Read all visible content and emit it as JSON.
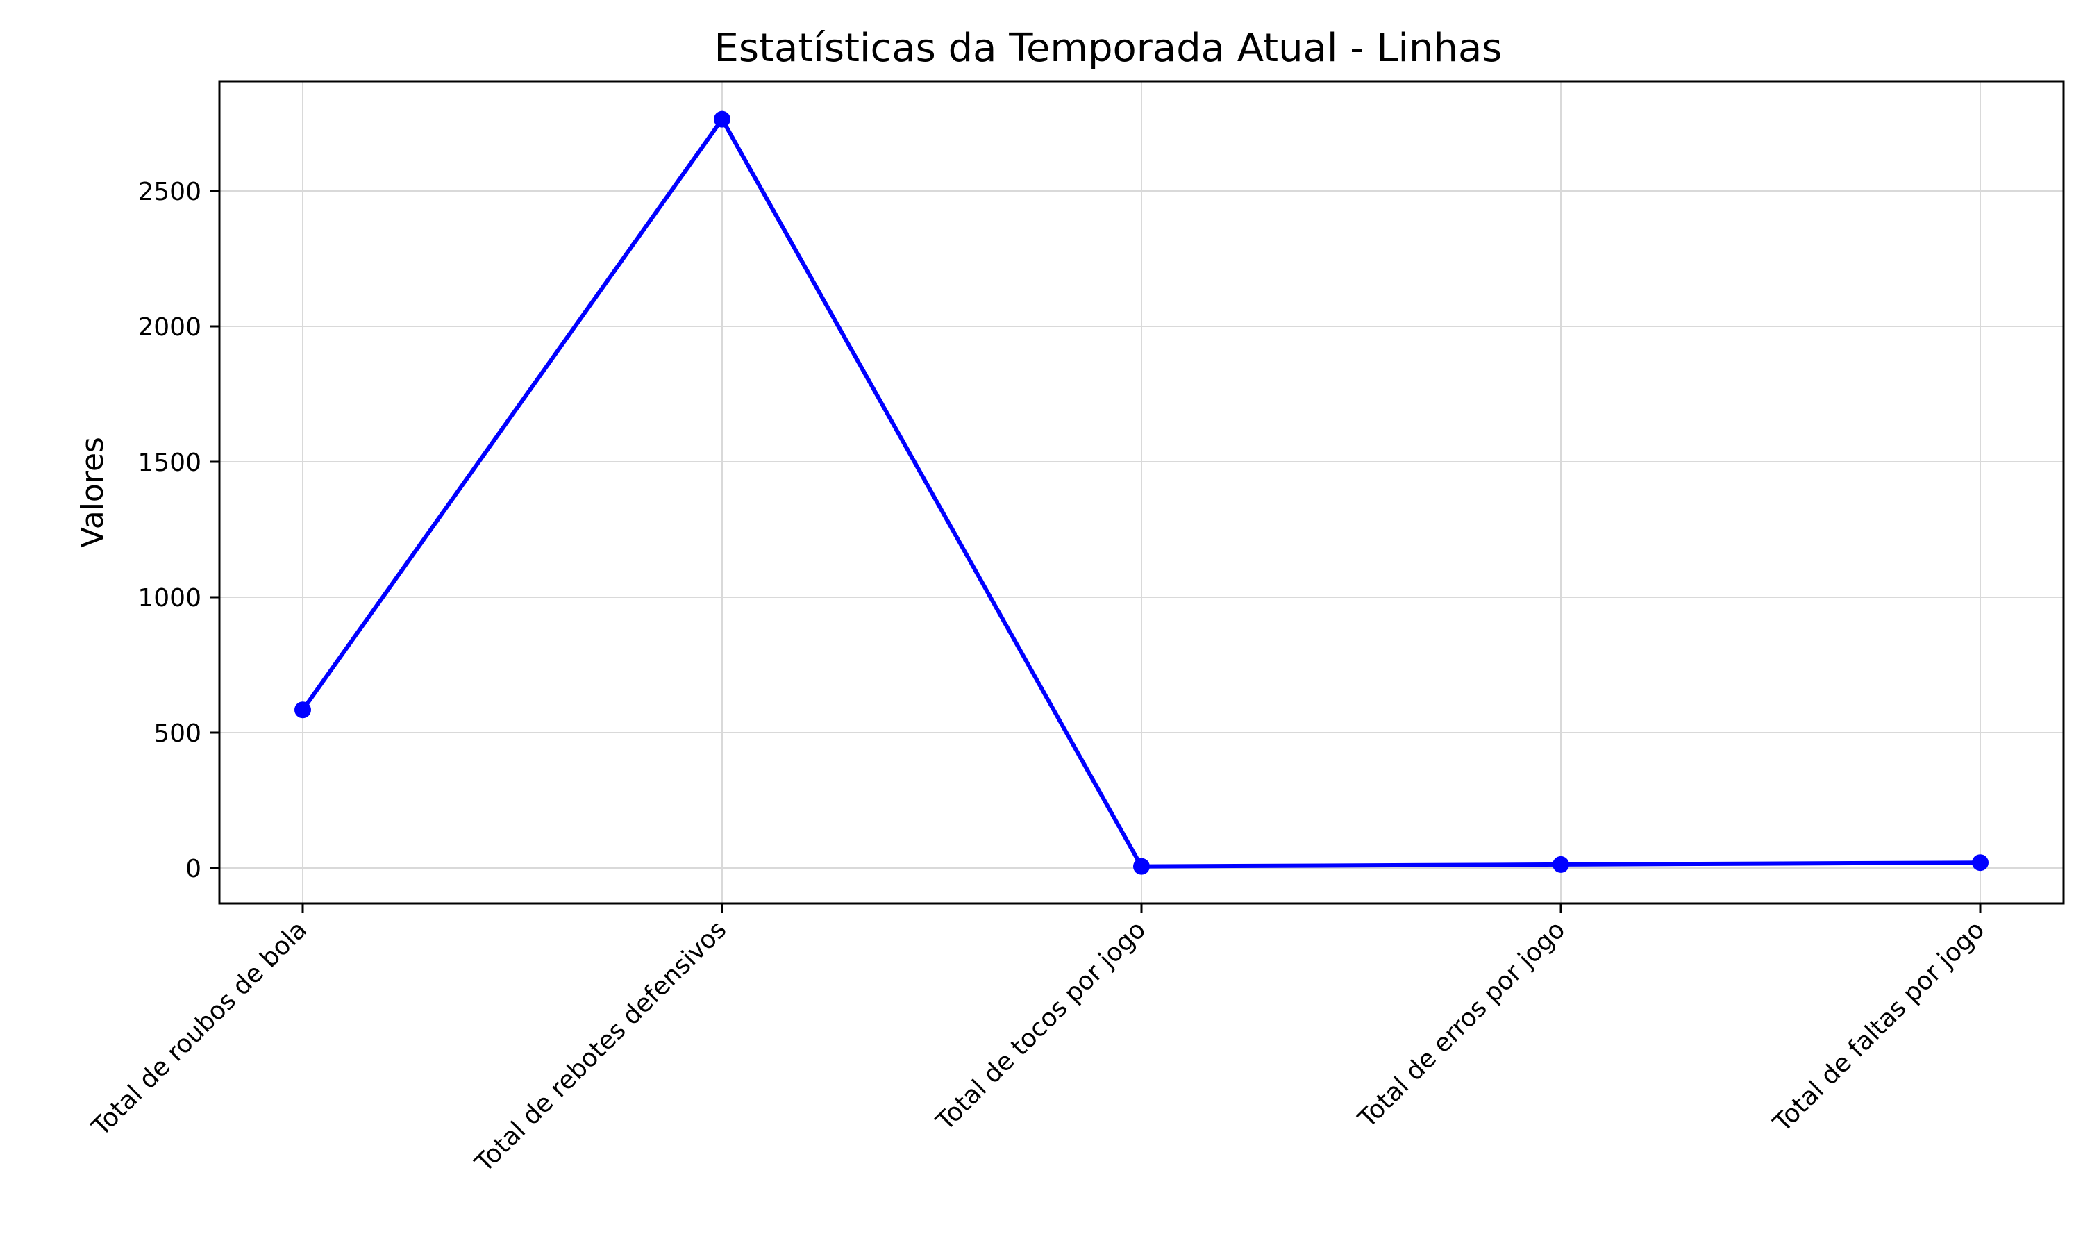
{
  "chart_data": {
    "type": "line",
    "title": "Estatísticas da Temporada Atual - Linhas",
    "xlabel": "",
    "ylabel": "Valores",
    "categories": [
      "Total de roubos de bola",
      "Total de rebotes defensivos",
      "Total de tocos por jogo",
      "Total de erros por jogo",
      "Total de faltas por jogo"
    ],
    "series": [
      {
        "values": [
          584,
          2765,
          6,
          13,
          20
        ]
      }
    ],
    "ylim": [
      -130,
      2900
    ],
    "yticks": [
      0,
      500,
      1000,
      1500,
      2000,
      2500
    ],
    "grid": true,
    "line_color": "#0000ff",
    "marker": "circle",
    "legend": "none"
  }
}
